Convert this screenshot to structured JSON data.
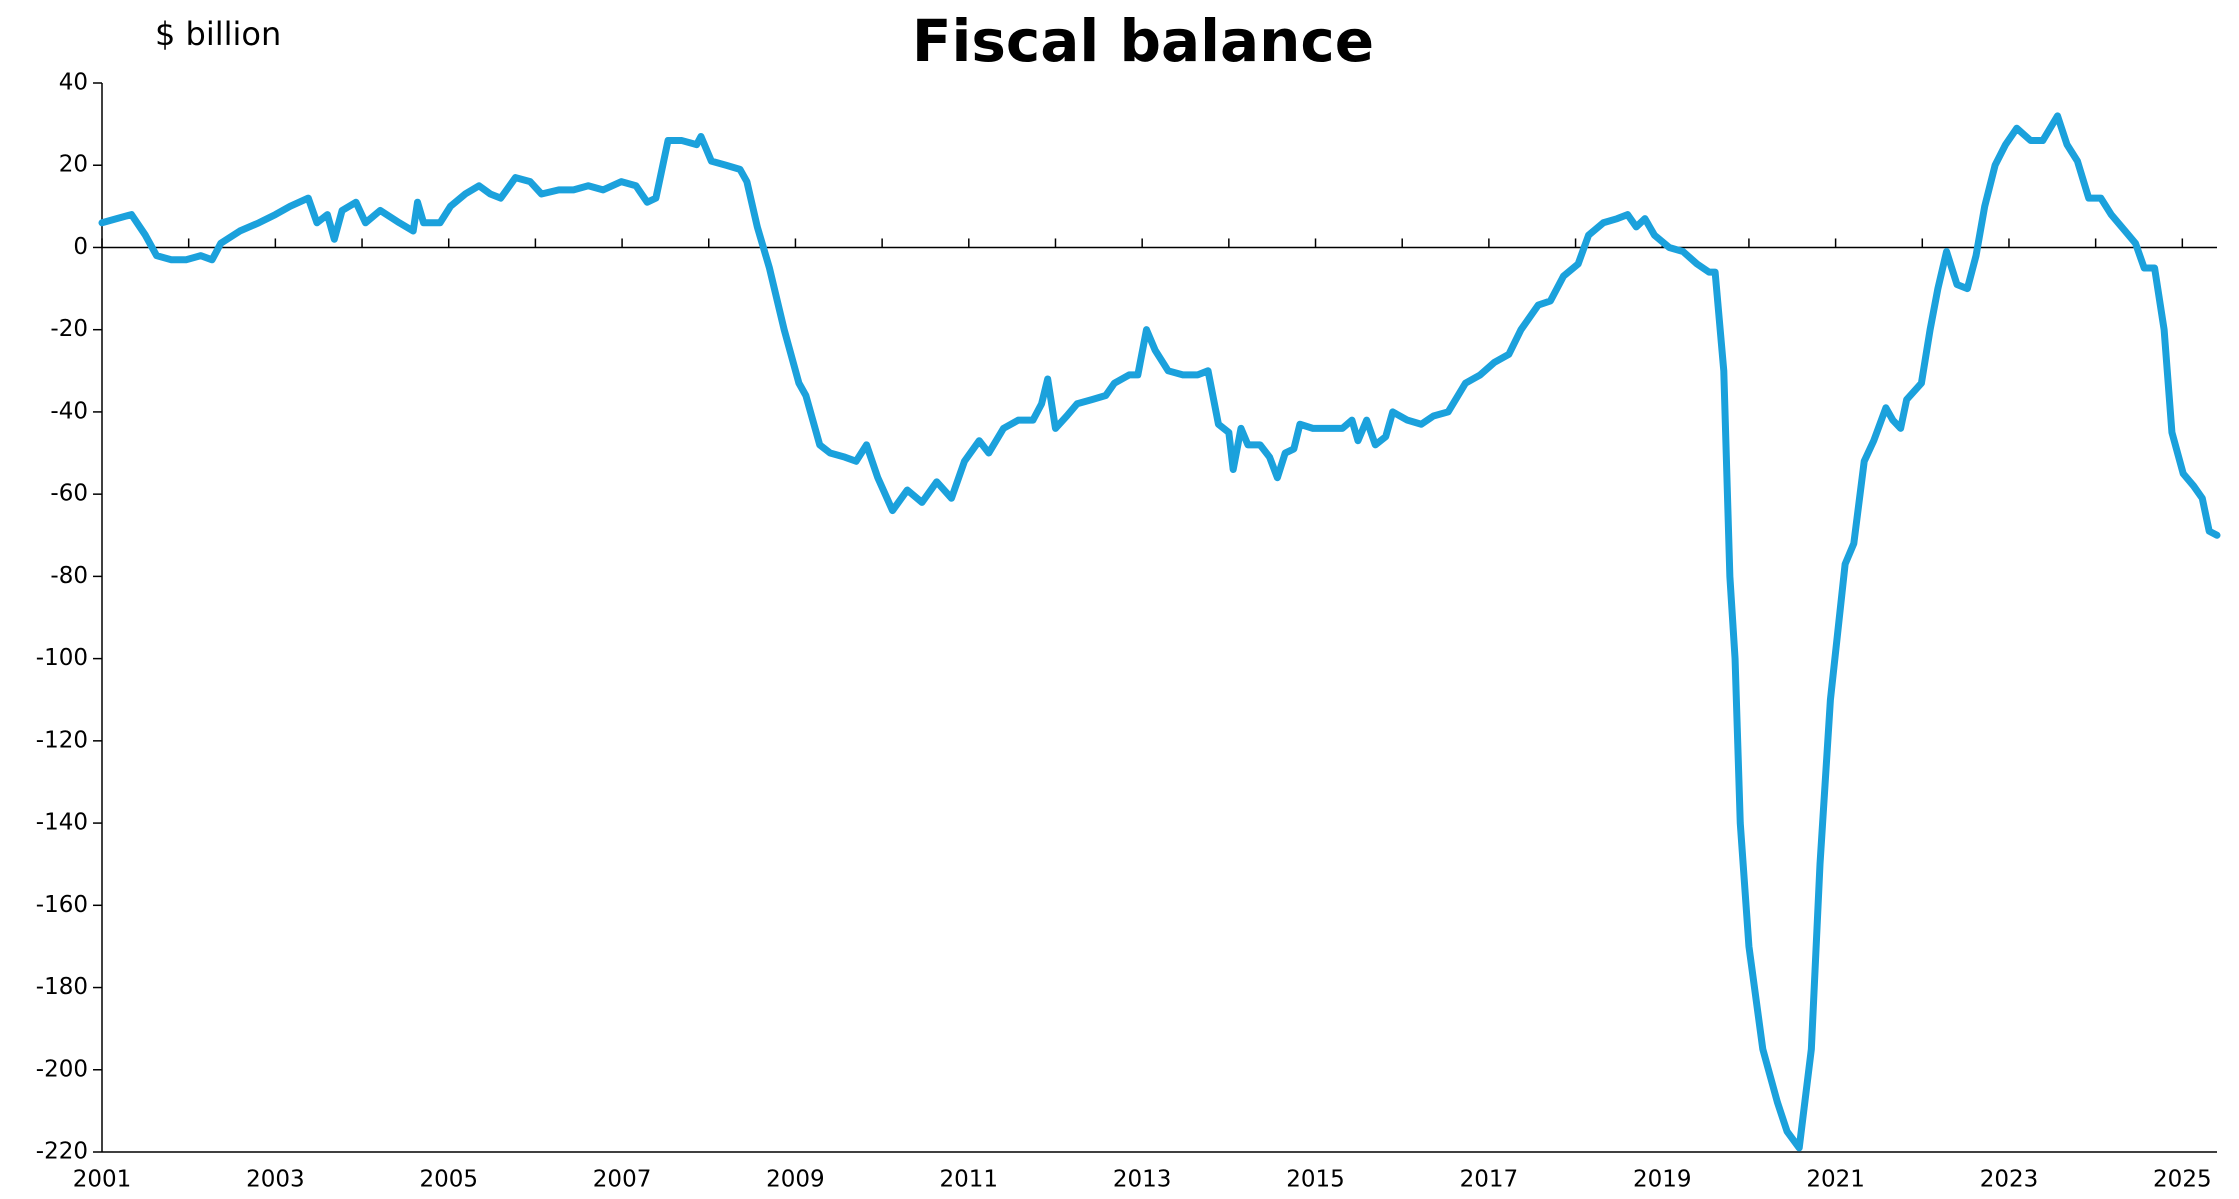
{
  "chart_data": {
    "type": "line",
    "title": "Fiscal balance",
    "y_axis_label": "$ billion",
    "x": [
      2001.0,
      2001.17,
      2001.34,
      2001.5,
      2001.63,
      2001.8,
      2001.97,
      2002.14,
      2002.27,
      2002.37,
      2002.59,
      2002.81,
      2003.0,
      2003.17,
      2003.38,
      2003.48,
      2003.6,
      2003.68,
      2003.77,
      2003.93,
      2004.04,
      2004.21,
      2004.43,
      2004.59,
      2004.64,
      2004.71,
      2004.9,
      2005.02,
      2005.19,
      2005.35,
      2005.48,
      2005.6,
      2005.77,
      2005.94,
      2006.07,
      2006.27,
      2006.44,
      2006.61,
      2006.78,
      2006.99,
      2007.16,
      2007.29,
      2007.39,
      2007.53,
      2007.69,
      2007.86,
      2007.91,
      2008.03,
      2008.2,
      2008.36,
      2008.44,
      2008.56,
      2008.7,
      2008.87,
      2009.04,
      2009.12,
      2009.28,
      2009.4,
      2009.57,
      2009.7,
      2009.82,
      2009.95,
      2010.12,
      2010.29,
      2010.46,
      2010.63,
      2010.8,
      2010.95,
      2011.12,
      2011.23,
      2011.4,
      2011.57,
      2011.74,
      2011.84,
      2011.91,
      2012.0,
      2012.13,
      2012.25,
      2012.42,
      2012.58,
      2012.68,
      2012.85,
      2012.95,
      2013.05,
      2013.15,
      2013.3,
      2013.47,
      2013.64,
      2013.76,
      2013.88,
      2014.0,
      2014.05,
      2014.14,
      2014.22,
      2014.36,
      2014.47,
      2014.56,
      2014.65,
      2014.75,
      2014.82,
      2014.97,
      2015.14,
      2015.31,
      2015.42,
      2015.49,
      2015.59,
      2015.69,
      2015.81,
      2015.89,
      2016.06,
      2016.22,
      2016.36,
      2016.53,
      2016.73,
      2016.9,
      2017.06,
      2017.23,
      2017.37,
      2017.57,
      2017.71,
      2017.86,
      2018.03,
      2018.15,
      2018.32,
      2018.48,
      2018.6,
      2018.7,
      2018.8,
      2018.91,
      2019.08,
      2019.24,
      2019.4,
      2019.54,
      2019.61,
      2019.71,
      2019.78,
      2019.84,
      2019.9,
      2020.0,
      2020.16,
      2020.33,
      2020.44,
      2020.58,
      2020.72,
      2020.82,
      2020.94,
      2021.11,
      2021.21,
      2021.33,
      2021.44,
      2021.58,
      2021.66,
      2021.75,
      2021.82,
      2021.99,
      2022.09,
      2022.18,
      2022.28,
      2022.4,
      2022.52,
      2022.62,
      2022.72,
      2022.84,
      2022.96,
      2023.09,
      2023.25,
      2023.39,
      2023.56,
      2023.67,
      2023.79,
      2023.92,
      2024.06,
      2024.18,
      2024.34,
      2024.46,
      2024.56,
      2024.68,
      2024.79,
      2024.88,
      2025.01,
      2025.13,
      2025.23,
      2025.31,
      2025.4
    ],
    "series": [
      {
        "name": "Fiscal balance",
        "color": "#1ba1dc",
        "values": [
          6,
          7,
          8,
          3,
          -2,
          -3,
          -3,
          -2,
          -3,
          1,
          4,
          6,
          8,
          10,
          12,
          6,
          8,
          2,
          9,
          11,
          6,
          9,
          6,
          4,
          11,
          6,
          6,
          10,
          13,
          15,
          13,
          12,
          17,
          16,
          13,
          14,
          14,
          15,
          14,
          16,
          15,
          11,
          12,
          26,
          26,
          25,
          27,
          21,
          20,
          19,
          16,
          5,
          -5,
          -20,
          -33,
          -36,
          -48,
          -50,
          -51,
          -52,
          -48,
          -56,
          -64,
          -59,
          -62,
          -57,
          -61,
          -52,
          -47,
          -50,
          -44,
          -42,
          -42,
          -38,
          -32,
          -44,
          -41,
          -38,
          -37,
          -36,
          -33,
          -31,
          -31,
          -20,
          -25,
          -30,
          -31,
          -31,
          -30,
          -43,
          -45,
          -54,
          -44,
          -48,
          -48,
          -51,
          -56,
          -50,
          -49,
          -43,
          -44,
          -44,
          -44,
          -42,
          -47,
          -42,
          -48,
          -46,
          -40,
          -42,
          -43,
          -41,
          -40,
          -33,
          -31,
          -28,
          -26,
          -20,
          -14,
          -13,
          -7,
          -4,
          3,
          6,
          7,
          8,
          5,
          7,
          3,
          0,
          -1,
          -4,
          -6,
          -6,
          -30,
          -80,
          -100,
          -140,
          -170,
          -195,
          -208,
          -215,
          -219,
          -195,
          -150,
          -110,
          -77,
          -72,
          -52,
          -47,
          -39,
          -42,
          -44,
          -37,
          -33,
          -20,
          -10,
          -1,
          -9,
          -10,
          -2,
          10,
          20,
          25,
          29,
          26,
          26,
          32,
          25,
          21,
          12,
          12,
          8,
          4,
          1,
          -5,
          -5,
          -20,
          -45,
          -55,
          -58,
          -61,
          -69,
          -70
        ]
      }
    ],
    "xlim": [
      2001,
      2025.4
    ],
    "xticks": [
      2001,
      2003,
      2005,
      2007,
      2009,
      2011,
      2013,
      2015,
      2017,
      2019,
      2021,
      2023,
      2025
    ],
    "xminorticks": [
      2002,
      2004,
      2006,
      2008,
      2010,
      2012,
      2014,
      2016,
      2018,
      2020,
      2022,
      2024
    ],
    "ylim": [
      -220,
      40
    ],
    "yticks": [
      -220,
      -200,
      -180,
      -160,
      -140,
      -120,
      -100,
      -80,
      -60,
      -40,
      -20,
      0,
      20,
      40
    ]
  }
}
